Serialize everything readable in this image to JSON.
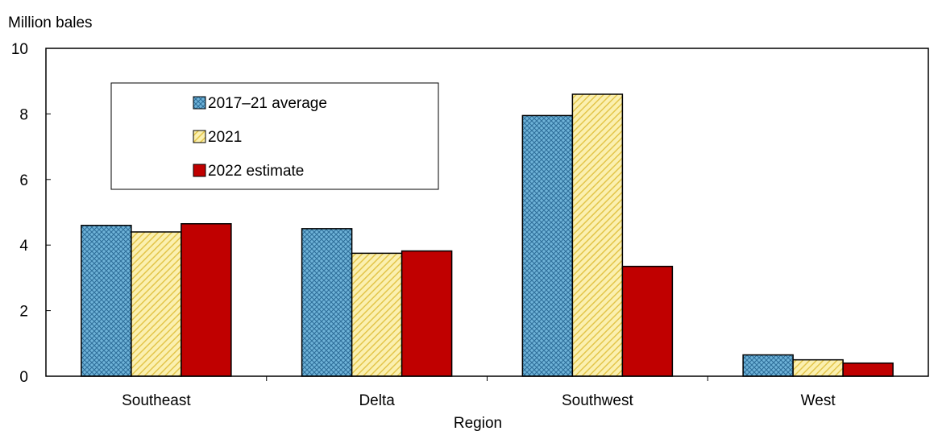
{
  "chart_data": {
    "type": "bar",
    "title": "",
    "ylabel": "Million bales",
    "xlabel": "Region",
    "ylim": [
      0,
      10
    ],
    "yticks": [
      0,
      2,
      4,
      6,
      8,
      10
    ],
    "categories": [
      "Southeast",
      "Delta",
      "Southwest",
      "West"
    ],
    "series": [
      {
        "name": "2017–21 average",
        "values": [
          4.6,
          4.5,
          7.95,
          0.65
        ],
        "color": "#4f9bc7",
        "pattern": "crosshatch-blue"
      },
      {
        "name": "2021",
        "values": [
          4.4,
          3.75,
          8.6,
          0.5
        ],
        "color": "#f3df80",
        "pattern": "diagonal-yellow"
      },
      {
        "name": "2022 estimate",
        "values": [
          4.65,
          3.82,
          3.35,
          0.4
        ],
        "color": "#c00000",
        "pattern": "solid"
      }
    ],
    "legend_position": "top-left",
    "grid": false
  }
}
